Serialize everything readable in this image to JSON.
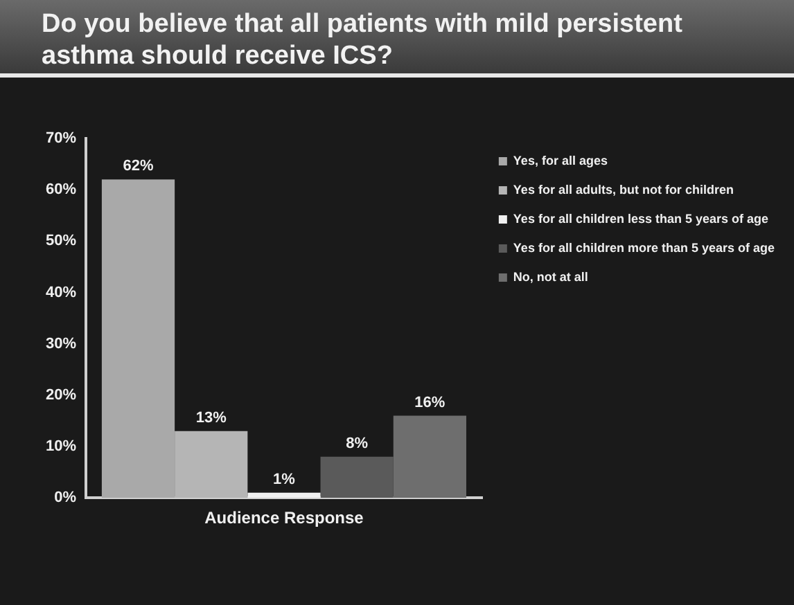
{
  "chart_data": {
    "type": "bar",
    "title": "Do you believe that all patients with mild persistent asthma should receive ICS?",
    "categories": [
      "Audience Response"
    ],
    "series": [
      {
        "name": "Yes, for all ages",
        "color": "#a9a9a9",
        "values": [
          62
        ]
      },
      {
        "name": "Yes for all adults, but not for children",
        "color": "#b5b5b5",
        "values": [
          13
        ]
      },
      {
        "name": "Yes for all children less than 5 years of age",
        "color": "#f0f0f0",
        "values": [
          1
        ]
      },
      {
        "name": "Yes for all children more than 5 years of age",
        "color": "#5a5a5a",
        "values": [
          8
        ]
      },
      {
        "name": "No, not at all",
        "color": "#6e6e6e",
        "values": [
          16
        ]
      }
    ],
    "ylim": [
      0,
      70
    ],
    "yticks": [
      {
        "value": 0,
        "label": "0%"
      },
      {
        "value": 10,
        "label": "10%"
      },
      {
        "value": 20,
        "label": "20%"
      },
      {
        "value": 30,
        "label": "30%"
      },
      {
        "value": 40,
        "label": "40%"
      },
      {
        "value": 50,
        "label": "50%"
      },
      {
        "value": 60,
        "label": "60%"
      },
      {
        "value": 70,
        "label": "70%"
      }
    ],
    "value_labels": [
      [
        "62%"
      ],
      [
        "13%"
      ],
      [
        "1%"
      ],
      [
        "8%"
      ],
      [
        "16%"
      ]
    ],
    "grid": false,
    "legend": "top right"
  }
}
